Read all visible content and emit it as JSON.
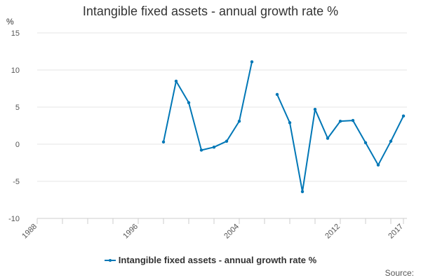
{
  "chart_data": {
    "type": "line",
    "title": "Intangible fixed assets - annual growth rate %",
    "ylabel": "%",
    "xlabel": "",
    "xlim": [
      1988,
      2017
    ],
    "ylim": [
      -10,
      15
    ],
    "xticks": [
      "1988",
      "1996",
      "2004",
      "2012",
      "2017"
    ],
    "yticks": [
      15,
      10,
      5,
      0,
      -5,
      -10
    ],
    "grid": true,
    "legend_position": "bottom",
    "series": [
      {
        "name": "Intangible fixed assets - annual growth rate %",
        "color": "#0077b6",
        "points": [
          [
            1998,
            0.3
          ],
          [
            1999,
            8.5
          ],
          [
            2000,
            5.6
          ],
          [
            2001,
            -0.8
          ],
          [
            2002,
            -0.4
          ],
          [
            2003,
            0.4
          ],
          [
            2004,
            3.1
          ],
          [
            2005,
            11.1
          ],
          [
            2006,
            null
          ],
          [
            2007,
            6.7
          ],
          [
            2008,
            2.9
          ],
          [
            2009,
            -6.4
          ],
          [
            2010,
            4.7
          ],
          [
            2011,
            0.8
          ],
          [
            2012,
            3.1
          ],
          [
            2013,
            3.2
          ],
          [
            2014,
            0.2
          ],
          [
            2015,
            -2.8
          ],
          [
            2016,
            0.4
          ],
          [
            2017,
            3.8
          ]
        ]
      }
    ]
  },
  "source_label": "Source:"
}
